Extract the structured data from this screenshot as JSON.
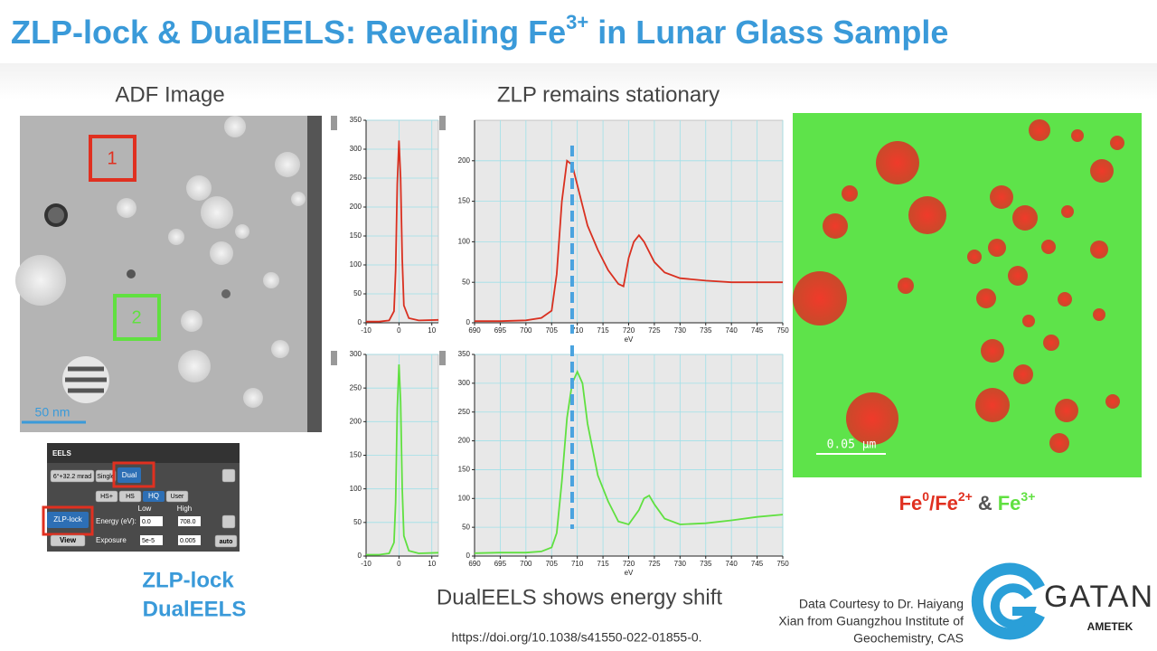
{
  "title": {
    "main": "ZLP-lock & DualEELS: Revealing Fe",
    "sup": "3+",
    "rest": " in Lunar Glass Sample"
  },
  "adf": {
    "label": "ADF Image",
    "markers": [
      "1",
      "2"
    ],
    "scale_bar": "50 nm"
  },
  "eels_panel": {
    "title": "EELS",
    "angle": "6°+32.2 mrad",
    "single": "Single",
    "dual": "Dual",
    "modes": [
      "HS+",
      "HS",
      "HQ",
      "User"
    ],
    "low": "Low",
    "high": "High",
    "zlp_lock": "ZLP-lock",
    "energy": "Energy (eV):",
    "energy_low": "0.0",
    "energy_high": "708.0",
    "view": "View",
    "exposure": "Exposure",
    "exposure_low": "5e-5",
    "exposure_high": "0.005",
    "auto": "auto"
  },
  "zlp_caption": [
    "ZLP-lock",
    "DualEELS"
  ],
  "spectra_title": "ZLP remains stationary",
  "chart_data": [
    {
      "type": "line",
      "color": "#d93020",
      "x": [
        -10,
        -6,
        -3,
        -1.5,
        -1,
        -0.5,
        0,
        0.5,
        1,
        1.5,
        3,
        6,
        12
      ],
      "values": [
        2,
        2,
        4,
        20,
        90,
        240,
        315,
        250,
        110,
        30,
        8,
        4,
        5
      ],
      "xlim": [
        -10,
        12
      ],
      "xticks": [
        -10,
        0,
        10
      ],
      "ylim": [
        0,
        350
      ],
      "yticks": [
        0,
        50,
        100,
        150,
        200,
        250,
        300,
        350
      ],
      "grid": true
    },
    {
      "type": "line",
      "color": "#d93020",
      "x": [
        690,
        695,
        700,
        703,
        705,
        706,
        707,
        708,
        709,
        710,
        712,
        714,
        716,
        718,
        719,
        720,
        721,
        722,
        723,
        725,
        727,
        730,
        735,
        740,
        745,
        750
      ],
      "values": [
        2,
        2,
        3,
        6,
        15,
        60,
        150,
        200,
        195,
        170,
        120,
        90,
        65,
        48,
        45,
        80,
        100,
        108,
        100,
        75,
        62,
        55,
        52,
        50,
        50,
        50
      ],
      "xlim": [
        690,
        750
      ],
      "xticks": [
        690,
        695,
        700,
        705,
        710,
        715,
        720,
        725,
        730,
        735,
        740,
        745,
        750
      ],
      "ylim": [
        0,
        250
      ],
      "yticks": [
        0,
        50,
        100,
        150,
        200
      ],
      "xlabel": "eV",
      "grid": true,
      "marker_line": {
        "x": 709,
        "color": "#4aa3df"
      }
    },
    {
      "type": "line",
      "color": "#60e040",
      "x": [
        -10,
        -6,
        -3,
        -1.5,
        -1,
        -0.5,
        0,
        0.5,
        1,
        1.5,
        3,
        6,
        12
      ],
      "values": [
        2,
        2,
        4,
        20,
        80,
        220,
        285,
        230,
        100,
        30,
        8,
        4,
        5
      ],
      "xlim": [
        -10,
        12
      ],
      "xticks": [
        -10,
        0,
        10
      ],
      "ylim": [
        0,
        300
      ],
      "yticks": [
        0,
        50,
        100,
        150,
        200,
        250,
        300
      ],
      "grid": true
    },
    {
      "type": "line",
      "color": "#60e040",
      "x": [
        690,
        695,
        700,
        703,
        705,
        706,
        707,
        708,
        709,
        710,
        711,
        712,
        714,
        716,
        718,
        720,
        722,
        723,
        724,
        725,
        727,
        730,
        735,
        740,
        745,
        750
      ],
      "values": [
        5,
        6,
        6,
        8,
        15,
        40,
        130,
        240,
        300,
        320,
        300,
        230,
        140,
        95,
        60,
        55,
        80,
        100,
        105,
        90,
        65,
        55,
        57,
        62,
        68,
        72
      ],
      "xlim": [
        690,
        750
      ],
      "xticks": [
        690,
        695,
        700,
        705,
        710,
        715,
        720,
        725,
        730,
        735,
        740,
        745,
        750
      ],
      "ylim": [
        0,
        350
      ],
      "yticks": [
        0,
        50,
        100,
        150,
        200,
        250,
        300,
        350
      ],
      "xlabel": "eV",
      "grid": true,
      "marker_line": {
        "x": 709,
        "color": "#4aa3df"
      }
    }
  ],
  "dual_caption": "DualEELS shows energy shift",
  "doi": "https://doi.org/10.1038/s41550-022-01855-0.",
  "map": {
    "scale_bar": "0.05 μm",
    "legend": {
      "red": {
        "base": "Fe",
        "sup": "0",
        "mid": "/Fe",
        "sup2": "2+"
      },
      "amp": "&",
      "green": {
        "base": "Fe",
        "sup": "3+"
      }
    }
  },
  "credit": [
    "Data Courtesy to Dr. Haiyang",
    "Xian from Guangzhou Institute of",
    "Geochemistry, CAS"
  ],
  "logo": {
    "name": "GATAN",
    "sub": "AMETEK"
  }
}
